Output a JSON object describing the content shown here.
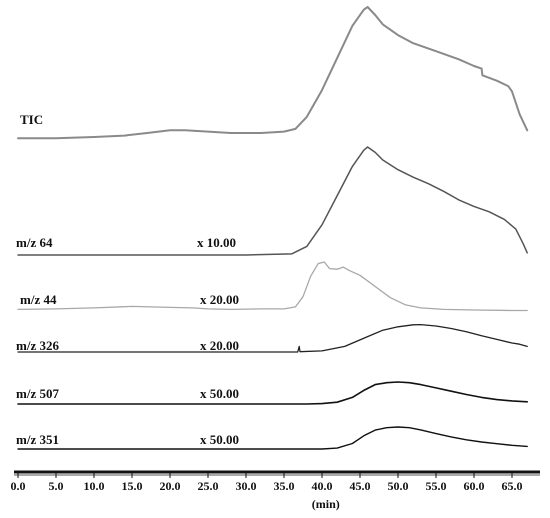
{
  "chart_data": {
    "type": "line",
    "xlabel": "(min)",
    "ylabel": "",
    "xlim": [
      0,
      68
    ],
    "x_ticks": [
      "0.0",
      "5.0",
      "10.0",
      "15.0",
      "20.0",
      "25.0",
      "30.0",
      "35.0",
      "40.0",
      "45.0",
      "50.0",
      "55.0",
      "60.0",
      "65.0"
    ],
    "grid": false,
    "legend": "none",
    "series": [
      {
        "name": "TIC",
        "scale": "",
        "color": "#8a8a8a",
        "points": [
          [
            0,
            0.02
          ],
          [
            5,
            0.02
          ],
          [
            10,
            0.03
          ],
          [
            14,
            0.04
          ],
          [
            17,
            0.06
          ],
          [
            20,
            0.08
          ],
          [
            22,
            0.08
          ],
          [
            25,
            0.07
          ],
          [
            28,
            0.06
          ],
          [
            32,
            0.06
          ],
          [
            35,
            0.07
          ],
          [
            36.5,
            0.09
          ],
          [
            38,
            0.18
          ],
          [
            40,
            0.38
          ],
          [
            42,
            0.62
          ],
          [
            44,
            0.86
          ],
          [
            45.5,
            0.98
          ],
          [
            46,
            1.0
          ],
          [
            47,
            0.94
          ],
          [
            48,
            0.87
          ],
          [
            50,
            0.79
          ],
          [
            52,
            0.73
          ],
          [
            55,
            0.67
          ],
          [
            58,
            0.61
          ],
          [
            60,
            0.56
          ],
          [
            61,
            0.54
          ],
          [
            61.1,
            0.49
          ],
          [
            63,
            0.45
          ],
          [
            64.5,
            0.41
          ],
          [
            65,
            0.37
          ],
          [
            66,
            0.2
          ],
          [
            67,
            0.08
          ]
        ]
      },
      {
        "name": "m/z 64",
        "scale": "x 10.00",
        "color": "#555555",
        "points": [
          [
            0,
            0.0
          ],
          [
            10,
            0.0
          ],
          [
            20,
            0.0
          ],
          [
            30,
            0.0
          ],
          [
            36,
            0.01
          ],
          [
            38,
            0.08
          ],
          [
            40,
            0.28
          ],
          [
            42,
            0.55
          ],
          [
            44,
            0.82
          ],
          [
            45.5,
            0.97
          ],
          [
            46,
            1.0
          ],
          [
            47,
            0.95
          ],
          [
            48,
            0.88
          ],
          [
            50,
            0.79
          ],
          [
            52,
            0.72
          ],
          [
            54,
            0.66
          ],
          [
            56,
            0.59
          ],
          [
            58,
            0.51
          ],
          [
            59,
            0.48
          ],
          [
            60,
            0.45
          ],
          [
            62,
            0.4
          ],
          [
            64,
            0.33
          ],
          [
            65.5,
            0.24
          ],
          [
            66.5,
            0.1
          ],
          [
            67,
            0.02
          ]
        ]
      },
      {
        "name": "m/z 44",
        "scale": "x 20.00",
        "color": "#a8a8a8",
        "points": [
          [
            0,
            0.05
          ],
          [
            5,
            0.06
          ],
          [
            10,
            0.08
          ],
          [
            15,
            0.11
          ],
          [
            20,
            0.09
          ],
          [
            23,
            0.08
          ],
          [
            25,
            0.06
          ],
          [
            28,
            0.05
          ],
          [
            32,
            0.06
          ],
          [
            35,
            0.06
          ],
          [
            36.5,
            0.1
          ],
          [
            37.5,
            0.3
          ],
          [
            38.5,
            0.7
          ],
          [
            39.5,
            0.95
          ],
          [
            40.3,
            0.98
          ],
          [
            41,
            0.85
          ],
          [
            42,
            0.84
          ],
          [
            42.8,
            0.88
          ],
          [
            43.5,
            0.82
          ],
          [
            45,
            0.72
          ],
          [
            47,
            0.5
          ],
          [
            49,
            0.28
          ],
          [
            51,
            0.14
          ],
          [
            53,
            0.08
          ],
          [
            56,
            0.05
          ],
          [
            60,
            0.04
          ],
          [
            65,
            0.03
          ],
          [
            67,
            0.03
          ]
        ]
      },
      {
        "name": "m/z 326",
        "scale": "x 20.00",
        "color": "#222222",
        "points": [
          [
            0,
            0.0
          ],
          [
            10,
            0.0
          ],
          [
            20,
            0.0
          ],
          [
            30,
            0.0
          ],
          [
            36.8,
            0.0
          ],
          [
            37,
            0.2
          ],
          [
            37.1,
            0.01
          ],
          [
            40,
            0.04
          ],
          [
            43,
            0.2
          ],
          [
            46,
            0.55
          ],
          [
            48,
            0.78
          ],
          [
            50,
            0.9
          ],
          [
            52,
            0.97
          ],
          [
            53,
            0.98
          ],
          [
            55,
            0.93
          ],
          [
            57,
            0.84
          ],
          [
            59,
            0.72
          ],
          [
            61,
            0.58
          ],
          [
            63,
            0.45
          ],
          [
            65,
            0.32
          ],
          [
            66,
            0.28
          ],
          [
            67,
            0.2
          ]
        ]
      },
      {
        "name": "m/z 507",
        "scale": "x 50.00",
        "color": "#111111",
        "points": [
          [
            0,
            0.0
          ],
          [
            10,
            0.0
          ],
          [
            20,
            0.0
          ],
          [
            30,
            0.0
          ],
          [
            38,
            0.0
          ],
          [
            40,
            0.02
          ],
          [
            42,
            0.08
          ],
          [
            44,
            0.3
          ],
          [
            45.5,
            0.62
          ],
          [
            47,
            0.88
          ],
          [
            48.5,
            0.97
          ],
          [
            50,
            1.0
          ],
          [
            51.5,
            0.97
          ],
          [
            53,
            0.88
          ],
          [
            55,
            0.73
          ],
          [
            57,
            0.58
          ],
          [
            59,
            0.43
          ],
          [
            61,
            0.3
          ],
          [
            63,
            0.2
          ],
          [
            65,
            0.14
          ],
          [
            67,
            0.1
          ]
        ]
      },
      {
        "name": "m/z 351",
        "scale": "x 50.00",
        "color": "#111111",
        "points": [
          [
            0,
            0.0
          ],
          [
            10,
            0.0
          ],
          [
            20,
            0.0
          ],
          [
            30,
            0.0
          ],
          [
            40,
            0.0
          ],
          [
            42,
            0.04
          ],
          [
            44,
            0.25
          ],
          [
            45.5,
            0.6
          ],
          [
            47,
            0.86
          ],
          [
            48.5,
            0.97
          ],
          [
            50,
            1.0
          ],
          [
            51.5,
            0.97
          ],
          [
            53,
            0.87
          ],
          [
            55,
            0.7
          ],
          [
            57,
            0.55
          ],
          [
            59,
            0.42
          ],
          [
            61,
            0.32
          ],
          [
            63,
            0.24
          ],
          [
            65,
            0.17
          ],
          [
            67,
            0.12
          ]
        ]
      }
    ]
  }
}
